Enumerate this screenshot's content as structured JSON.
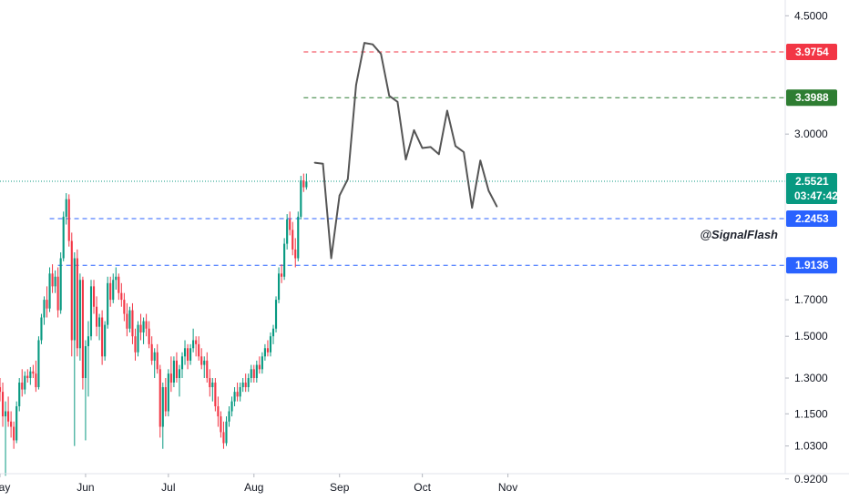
{
  "watermark": "@SignalFlash",
  "chart_data": {
    "type": "candlestick",
    "price_scale": "log",
    "ylim": [
      0.88,
      4.75
    ],
    "x_domain": [
      0,
      264
    ],
    "y_ticks": [
      "4.5000",
      "3.0000",
      "1.7000",
      "1.5000",
      "1.3000",
      "1.1500",
      "1.0300",
      "0.9200"
    ],
    "x_ticks": [
      {
        "label": "May",
        "day": 0
      },
      {
        "label": "Jun",
        "day": 31
      },
      {
        "label": "Jul",
        "day": 61
      },
      {
        "label": "Aug",
        "day": 92
      },
      {
        "label": "Sep",
        "day": 123
      },
      {
        "label": "Oct",
        "day": 153
      },
      {
        "label": "Nov",
        "day": 184
      }
    ],
    "horizontal_levels": [
      {
        "value": 3.9754,
        "label": "3.9754",
        "color": "#f23645",
        "style": "dashed",
        "from_day": 110
      },
      {
        "value": 3.3988,
        "label": "3.3988",
        "color": "#2e7d32",
        "style": "dashed",
        "from_day": 110
      },
      {
        "value": 2.2453,
        "label": "2.2453",
        "color": "#2962ff",
        "style": "dashed",
        "from_day": 18
      },
      {
        "value": 1.9136,
        "label": "1.9136",
        "color": "#2962ff",
        "style": "dashed",
        "from_day": 21
      }
    ],
    "last_price": {
      "value": 2.5521,
      "label": "2.5521",
      "countdown": "03:47:42",
      "color": "#089981"
    },
    "projection": {
      "color": "#555555",
      "points": [
        [
          114,
          2.72
        ],
        [
          117,
          2.71
        ],
        [
          120,
          1.96
        ],
        [
          123,
          2.43
        ],
        [
          126,
          2.57
        ],
        [
          129,
          3.55
        ],
        [
          132,
          4.1
        ],
        [
          135,
          4.08
        ],
        [
          138,
          3.95
        ],
        [
          141,
          3.42
        ],
        [
          144,
          3.35
        ],
        [
          147,
          2.75
        ],
        [
          150,
          3.04
        ],
        [
          153,
          2.86
        ],
        [
          156,
          2.87
        ],
        [
          159,
          2.8
        ],
        [
          162,
          3.25
        ],
        [
          165,
          2.88
        ],
        [
          168,
          2.82
        ],
        [
          171,
          2.33
        ],
        [
          174,
          2.74
        ],
        [
          177,
          2.47
        ],
        [
          180,
          2.34
        ]
      ]
    },
    "candle_colors": {
      "up": "#089981",
      "down": "#f23645"
    },
    "candles": [
      [
        1.26,
        1.3,
        1.2,
        1.24
      ],
      [
        1.24,
        1.28,
        1.1,
        1.14
      ],
      [
        1.14,
        1.2,
        0.93,
        1.16
      ],
      [
        1.16,
        1.22,
        1.1,
        1.12
      ],
      [
        1.12,
        1.16,
        1.06,
        1.1
      ],
      [
        1.1,
        1.12,
        1.02,
        1.05
      ],
      [
        1.05,
        1.2,
        1.04,
        1.18
      ],
      [
        1.18,
        1.3,
        1.16,
        1.28
      ],
      [
        1.28,
        1.34,
        1.22,
        1.25
      ],
      [
        1.25,
        1.33,
        1.23,
        1.31
      ],
      [
        1.31,
        1.34,
        1.28,
        1.3
      ],
      [
        1.3,
        1.35,
        1.27,
        1.33
      ],
      [
        1.33,
        1.36,
        1.3,
        1.32
      ],
      [
        1.32,
        1.38,
        1.24,
        1.26
      ],
      [
        1.26,
        1.5,
        1.25,
        1.48
      ],
      [
        1.48,
        1.62,
        1.46,
        1.6
      ],
      [
        1.6,
        1.72,
        1.56,
        1.7
      ],
      [
        1.7,
        1.78,
        1.6,
        1.65
      ],
      [
        1.65,
        1.9,
        1.63,
        1.86
      ],
      [
        1.86,
        1.92,
        1.74,
        1.78
      ],
      [
        1.78,
        1.88,
        1.74,
        1.84
      ],
      [
        1.84,
        1.9,
        1.6,
        1.64
      ],
      [
        1.64,
        2.0,
        1.62,
        1.96
      ],
      [
        1.96,
        2.3,
        1.94,
        2.26
      ],
      [
        2.26,
        2.45,
        2.2,
        2.4
      ],
      [
        2.4,
        2.44,
        2.04,
        2.08
      ],
      [
        2.08,
        2.14,
        1.4,
        1.48
      ],
      [
        1.48,
        2.0,
        1.03,
        1.96
      ],
      [
        1.96,
        2.02,
        1.4,
        1.44
      ],
      [
        1.44,
        1.86,
        1.38,
        1.82
      ],
      [
        1.82,
        1.84,
        1.25,
        1.3
      ],
      [
        1.3,
        1.48,
        1.05,
        1.45
      ],
      [
        1.45,
        1.58,
        1.22,
        1.5
      ],
      [
        1.5,
        1.82,
        1.48,
        1.78
      ],
      [
        1.78,
        1.82,
        1.62,
        1.66
      ],
      [
        1.66,
        1.72,
        1.5,
        1.55
      ],
      [
        1.55,
        1.62,
        1.48,
        1.6
      ],
      [
        1.6,
        1.64,
        1.36,
        1.4
      ],
      [
        1.4,
        1.58,
        1.38,
        1.56
      ],
      [
        1.56,
        1.84,
        1.54,
        1.8
      ],
      [
        1.8,
        1.84,
        1.66,
        1.7
      ],
      [
        1.7,
        1.86,
        1.68,
        1.82
      ],
      [
        1.82,
        1.9,
        1.76,
        1.84
      ],
      [
        1.84,
        1.86,
        1.7,
        1.74
      ],
      [
        1.74,
        1.8,
        1.66,
        1.7
      ],
      [
        1.7,
        1.74,
        1.58,
        1.62
      ],
      [
        1.62,
        1.68,
        1.5,
        1.54
      ],
      [
        1.54,
        1.66,
        1.52,
        1.64
      ],
      [
        1.64,
        1.68,
        1.46,
        1.5
      ],
      [
        1.5,
        1.54,
        1.38,
        1.42
      ],
      [
        1.42,
        1.58,
        1.4,
        1.56
      ],
      [
        1.56,
        1.62,
        1.48,
        1.52
      ],
      [
        1.52,
        1.6,
        1.46,
        1.58
      ],
      [
        1.58,
        1.62,
        1.5,
        1.54
      ],
      [
        1.54,
        1.58,
        1.44,
        1.46
      ],
      [
        1.46,
        1.5,
        1.36,
        1.38
      ],
      [
        1.38,
        1.44,
        1.3,
        1.42
      ],
      [
        1.42,
        1.46,
        1.32,
        1.34
      ],
      [
        1.34,
        1.36,
        1.06,
        1.1
      ],
      [
        1.1,
        1.28,
        1.02,
        1.26
      ],
      [
        1.26,
        1.3,
        1.14,
        1.16
      ],
      [
        1.16,
        1.34,
        1.14,
        1.32
      ],
      [
        1.32,
        1.4,
        1.24,
        1.28
      ],
      [
        1.28,
        1.4,
        1.26,
        1.38
      ],
      [
        1.38,
        1.42,
        1.28,
        1.3
      ],
      [
        1.3,
        1.36,
        1.22,
        1.34
      ],
      [
        1.34,
        1.42,
        1.3,
        1.4
      ],
      [
        1.4,
        1.48,
        1.36,
        1.44
      ],
      [
        1.44,
        1.46,
        1.34,
        1.38
      ],
      [
        1.38,
        1.46,
        1.36,
        1.44
      ],
      [
        1.44,
        1.54,
        1.42,
        1.48
      ],
      [
        1.48,
        1.5,
        1.4,
        1.46
      ],
      [
        1.46,
        1.5,
        1.38,
        1.4
      ],
      [
        1.4,
        1.44,
        1.34,
        1.36
      ],
      [
        1.36,
        1.4,
        1.3,
        1.38
      ],
      [
        1.38,
        1.42,
        1.28,
        1.3
      ],
      [
        1.3,
        1.34,
        1.22,
        1.26
      ],
      [
        1.26,
        1.3,
        1.2,
        1.28
      ],
      [
        1.28,
        1.3,
        1.16,
        1.18
      ],
      [
        1.18,
        1.22,
        1.1,
        1.14
      ],
      [
        1.14,
        1.16,
        1.06,
        1.08
      ],
      [
        1.08,
        1.12,
        1.02,
        1.04
      ],
      [
        1.04,
        1.14,
        1.03,
        1.12
      ],
      [
        1.12,
        1.18,
        1.1,
        1.16
      ],
      [
        1.16,
        1.22,
        1.14,
        1.2
      ],
      [
        1.2,
        1.26,
        1.18,
        1.24
      ],
      [
        1.24,
        1.28,
        1.2,
        1.22
      ],
      [
        1.22,
        1.28,
        1.2,
        1.26
      ],
      [
        1.26,
        1.3,
        1.24,
        1.28
      ],
      [
        1.28,
        1.32,
        1.24,
        1.26
      ],
      [
        1.26,
        1.32,
        1.24,
        1.3
      ],
      [
        1.3,
        1.36,
        1.28,
        1.34
      ],
      [
        1.34,
        1.36,
        1.28,
        1.3
      ],
      [
        1.3,
        1.38,
        1.28,
        1.36
      ],
      [
        1.36,
        1.4,
        1.32,
        1.34
      ],
      [
        1.34,
        1.42,
        1.32,
        1.4
      ],
      [
        1.4,
        1.46,
        1.38,
        1.44
      ],
      [
        1.44,
        1.48,
        1.4,
        1.42
      ],
      [
        1.42,
        1.52,
        1.4,
        1.5
      ],
      [
        1.5,
        1.56,
        1.46,
        1.54
      ],
      [
        1.54,
        1.72,
        1.52,
        1.7
      ],
      [
        1.7,
        1.9,
        1.68,
        1.86
      ],
      [
        1.86,
        1.92,
        1.8,
        1.84
      ],
      [
        1.84,
        2.1,
        1.82,
        2.06
      ],
      [
        2.06,
        2.28,
        2.02,
        2.24
      ],
      [
        2.24,
        2.3,
        2.12,
        2.16
      ],
      [
        2.16,
        2.22,
        1.98,
        2.02
      ],
      [
        2.02,
        2.1,
        1.9,
        1.96
      ],
      [
        1.96,
        2.3,
        1.94,
        2.26
      ],
      [
        2.26,
        2.6,
        2.24,
        2.56
      ],
      [
        2.56,
        2.62,
        2.46,
        2.5
      ],
      [
        2.5,
        2.62,
        2.48,
        2.55
      ]
    ]
  }
}
